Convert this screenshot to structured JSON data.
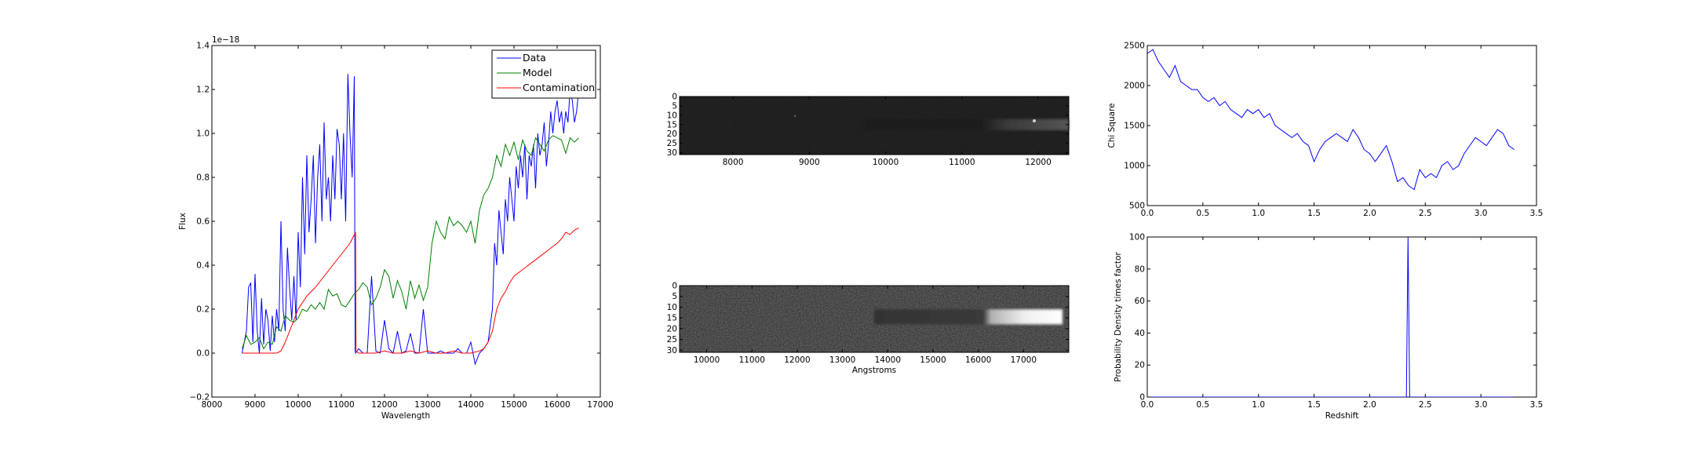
{
  "colors": {
    "data": "#0000ff",
    "model": "#008000",
    "contamination": "#ff0000",
    "axes": "#000000",
    "background": "#ffffff"
  },
  "chart_data": [
    {
      "id": "spectrum",
      "type": "line",
      "xlabel": "Wavelength",
      "ylabel": "Flux",
      "offset_text": "1e−18",
      "xlim": [
        8000,
        17000
      ],
      "ylim": [
        -0.2,
        1.4
      ],
      "xticks": [
        8000,
        9000,
        10000,
        11000,
        12000,
        13000,
        14000,
        15000,
        16000,
        17000
      ],
      "yticks": [
        "−0.2",
        "0.0",
        "0.2",
        "0.4",
        "0.6",
        "0.8",
        "1.0",
        "1.2",
        "1.4"
      ],
      "legend_position": "upper-right",
      "series": [
        {
          "name": "Data",
          "color": "#0000ff",
          "x": [
            8700,
            8800,
            8850,
            8900,
            8950,
            9000,
            9050,
            9100,
            9150,
            9200,
            9250,
            9300,
            9350,
            9400,
            9450,
            9500,
            9550,
            9600,
            9650,
            9700,
            9750,
            9800,
            9850,
            9900,
            9950,
            10000,
            10050,
            10100,
            10150,
            10200,
            10250,
            10300,
            10350,
            10400,
            10450,
            10500,
            10550,
            10600,
            10650,
            10700,
            10750,
            10800,
            10850,
            10900,
            10950,
            11000,
            11050,
            11100,
            11150,
            11200,
            11250,
            11300,
            11320,
            11330,
            11400,
            11500,
            11600,
            11700,
            11800,
            11900,
            12000,
            12100,
            12200,
            12300,
            12400,
            12500,
            12600,
            12700,
            12800,
            12900,
            13000,
            13100,
            13200,
            13300,
            13400,
            13500,
            13600,
            13700,
            13800,
            13900,
            14000,
            14100,
            14200,
            14300,
            14400,
            14500,
            14550,
            14600,
            14650,
            14700,
            14750,
            14800,
            14850,
            14900,
            14950,
            15000,
            15050,
            15100,
            15150,
            15200,
            15250,
            15300,
            15350,
            15400,
            15450,
            15500,
            15550,
            15600,
            15650,
            15700,
            15750,
            15800,
            15850,
            15900,
            15950,
            16000,
            16050,
            16100,
            16150,
            16200,
            16250,
            16300,
            16350,
            16400,
            16450,
            16500
          ],
          "y": [
            0.0,
            0.1,
            0.3,
            0.32,
            0.05,
            0.36,
            0.1,
            0.0,
            0.25,
            0.04,
            0.2,
            0.15,
            0.01,
            0.17,
            0.05,
            0.2,
            0.1,
            0.6,
            0.2,
            0.1,
            0.48,
            0.3,
            0.15,
            0.35,
            0.15,
            0.55,
            0.3,
            0.8,
            0.45,
            0.9,
            0.55,
            0.7,
            0.9,
            0.5,
            0.8,
            0.95,
            0.6,
            1.05,
            0.7,
            0.8,
            0.6,
            0.9,
            0.7,
            1.02,
            0.95,
            0.7,
            1.0,
            0.6,
            1.27,
            1.0,
            0.8,
            1.26,
            0.01,
            0.0,
            0.02,
            0.0,
            0.0,
            0.35,
            0.01,
            0.0,
            0.15,
            0.02,
            0.0,
            0.1,
            0.0,
            0.01,
            0.09,
            0.0,
            0.0,
            0.2,
            0.0,
            0.0,
            0.0,
            0.01,
            0.0,
            0.0,
            0.0,
            0.02,
            0.0,
            0.0,
            0.05,
            -0.05,
            0.0,
            0.02,
            0.05,
            0.2,
            0.5,
            0.4,
            0.65,
            0.55,
            0.45,
            0.7,
            0.6,
            0.8,
            0.7,
            0.6,
            0.85,
            0.75,
            0.9,
            0.8,
            0.95,
            0.7,
            0.9,
            0.85,
            0.95,
            0.75,
            1.0,
            0.9,
            0.95,
            1.05,
            0.85,
            0.95,
            1.1,
            1.0,
            1.1,
            1.15,
            1.05,
            1.1,
            1.0,
            1.1,
            1.05,
            1.2,
            1.15,
            1.05,
            1.1,
            1.2
          ]
        },
        {
          "name": "Model",
          "color": "#008000",
          "x": [
            8700,
            8800,
            8900,
            9000,
            9100,
            9200,
            9300,
            9400,
            9500,
            9600,
            9700,
            9800,
            9900,
            10000,
            10100,
            10200,
            10300,
            10400,
            10500,
            10600,
            10700,
            10800,
            10900,
            11000,
            11100,
            11200,
            11300,
            11400,
            11500,
            11600,
            11700,
            11800,
            11900,
            12000,
            12100,
            12200,
            12300,
            12400,
            12500,
            12600,
            12700,
            12800,
            12900,
            13000,
            13100,
            13200,
            13300,
            13400,
            13500,
            13600,
            13700,
            13800,
            13900,
            14000,
            14100,
            14200,
            14300,
            14400,
            14500,
            14600,
            14700,
            14800,
            14900,
            15000,
            15100,
            15200,
            15300,
            15400,
            15500,
            15600,
            15700,
            15800,
            15900,
            16000,
            16100,
            16200,
            16300,
            16400,
            16500
          ],
          "y": [
            0.02,
            0.08,
            0.04,
            0.05,
            0.07,
            0.02,
            0.05,
            0.04,
            0.12,
            0.1,
            0.17,
            0.15,
            0.14,
            0.16,
            0.2,
            0.19,
            0.22,
            0.2,
            0.23,
            0.2,
            0.29,
            0.26,
            0.27,
            0.22,
            0.21,
            0.24,
            0.27,
            0.29,
            0.32,
            0.3,
            0.22,
            0.25,
            0.3,
            0.38,
            0.35,
            0.25,
            0.33,
            0.28,
            0.2,
            0.33,
            0.25,
            0.31,
            0.24,
            0.3,
            0.5,
            0.6,
            0.55,
            0.52,
            0.62,
            0.58,
            0.6,
            0.58,
            0.55,
            0.6,
            0.5,
            0.65,
            0.72,
            0.75,
            0.8,
            0.9,
            0.85,
            0.95,
            0.9,
            0.96,
            0.88,
            0.97,
            0.92,
            0.9,
            0.98,
            0.95,
            0.92,
            0.97,
            0.99,
            0.98,
            0.97,
            0.91,
            0.98,
            0.96,
            0.98
          ]
        },
        {
          "name": "Contamination",
          "color": "#ff0000",
          "x": [
            8700,
            9000,
            9500,
            9600,
            9700,
            9800,
            9900,
            10000,
            10200,
            10400,
            10600,
            10800,
            11000,
            11200,
            11330,
            11340,
            11400,
            11600,
            11800,
            12000,
            12200,
            12400,
            12600,
            12800,
            13000,
            13200,
            13400,
            13600,
            13800,
            14000,
            14200,
            14300,
            14400,
            14500,
            14600,
            14700,
            14800,
            14900,
            15000,
            15200,
            15400,
            15600,
            15800,
            16000,
            16100,
            16200,
            16300,
            16400,
            16500
          ],
          "y": [
            0.0,
            0.0,
            0.0,
            0.01,
            0.05,
            0.1,
            0.15,
            0.2,
            0.26,
            0.3,
            0.35,
            0.4,
            0.45,
            0.5,
            0.55,
            0.01,
            0.0,
            0.0,
            0.0,
            0.01,
            0.0,
            0.0,
            0.01,
            0.0,
            0.01,
            0.0,
            0.0,
            0.01,
            0.0,
            0.0,
            0.01,
            0.02,
            0.05,
            0.1,
            0.2,
            0.25,
            0.28,
            0.32,
            0.35,
            0.38,
            0.41,
            0.44,
            0.47,
            0.5,
            0.52,
            0.55,
            0.54,
            0.56,
            0.57
          ]
        }
      ]
    },
    {
      "id": "direct-image-2d",
      "type": "heatmap",
      "xlim": [
        7300,
        12400
      ],
      "ylim": [
        31,
        0
      ],
      "xticks": [
        8000,
        9000,
        10000,
        11000,
        12000
      ],
      "yticks": [
        0,
        5,
        10,
        15,
        20,
        25,
        30
      ],
      "trace_row": 15,
      "trace_start": 10300
    },
    {
      "id": "dispersed-image-2d",
      "type": "heatmap",
      "xlabel": "Angstroms",
      "xlim": [
        9400,
        18000
      ],
      "ylim": [
        31,
        0
      ],
      "xticks": [
        10000,
        11000,
        12000,
        13000,
        14000,
        15000,
        16000,
        17000
      ],
      "yticks": [
        0,
        5,
        10,
        15,
        20,
        25,
        30
      ],
      "trace_row": 15,
      "trace_start": 14500
    },
    {
      "id": "chi-square",
      "type": "line",
      "ylabel": "Chi Square",
      "xlim": [
        0.0,
        3.5
      ],
      "ylim": [
        500,
        2500
      ],
      "xticks": [
        "0.0",
        "0.5",
        "1.0",
        "1.5",
        "2.0",
        "2.5",
        "3.0",
        "3.5"
      ],
      "yticks": [
        500,
        1000,
        1500,
        2000,
        2500
      ],
      "series": [
        {
          "name": "",
          "color": "#0000ff",
          "x": [
            0.0,
            0.05,
            0.1,
            0.15,
            0.2,
            0.25,
            0.3,
            0.35,
            0.4,
            0.45,
            0.5,
            0.55,
            0.6,
            0.65,
            0.7,
            0.75,
            0.8,
            0.85,
            0.9,
            0.95,
            1.0,
            1.05,
            1.1,
            1.15,
            1.2,
            1.25,
            1.3,
            1.35,
            1.4,
            1.45,
            1.5,
            1.55,
            1.6,
            1.65,
            1.7,
            1.75,
            1.8,
            1.85,
            1.9,
            1.95,
            2.0,
            2.05,
            2.1,
            2.15,
            2.2,
            2.25,
            2.3,
            2.35,
            2.4,
            2.45,
            2.5,
            2.55,
            2.6,
            2.65,
            2.7,
            2.75,
            2.8,
            2.85,
            2.9,
            2.95,
            3.0,
            3.05,
            3.1,
            3.15,
            3.2,
            3.25,
            3.3
          ],
          "y": [
            2400,
            2450,
            2300,
            2200,
            2100,
            2250,
            2050,
            2000,
            1950,
            1950,
            1850,
            1800,
            1850,
            1750,
            1800,
            1700,
            1650,
            1600,
            1700,
            1650,
            1700,
            1600,
            1650,
            1500,
            1450,
            1400,
            1350,
            1400,
            1300,
            1250,
            1050,
            1200,
            1300,
            1350,
            1400,
            1350,
            1300,
            1450,
            1350,
            1200,
            1150,
            1050,
            1150,
            1250,
            1050,
            800,
            850,
            750,
            700,
            950,
            850,
            900,
            850,
            1000,
            1050,
            950,
            1000,
            1150,
            1250,
            1350,
            1300,
            1250,
            1350,
            1450,
            1400,
            1250,
            1200
          ]
        }
      ]
    },
    {
      "id": "probability-density",
      "type": "line",
      "xlabel": "Redshift",
      "ylabel": "Probability Density times factor",
      "xlim": [
        0.0,
        3.5
      ],
      "ylim": [
        0,
        100
      ],
      "xticks": [
        "0.0",
        "0.5",
        "1.0",
        "1.5",
        "2.0",
        "2.5",
        "3.0",
        "3.5"
      ],
      "yticks": [
        0,
        20,
        40,
        60,
        80,
        100
      ],
      "series": [
        {
          "name": "",
          "color": "#0000ff",
          "x": [
            0.0,
            2.3,
            2.33,
            2.345,
            2.36,
            3.3
          ],
          "y": [
            0,
            0,
            0,
            100,
            0,
            0
          ]
        }
      ]
    }
  ]
}
